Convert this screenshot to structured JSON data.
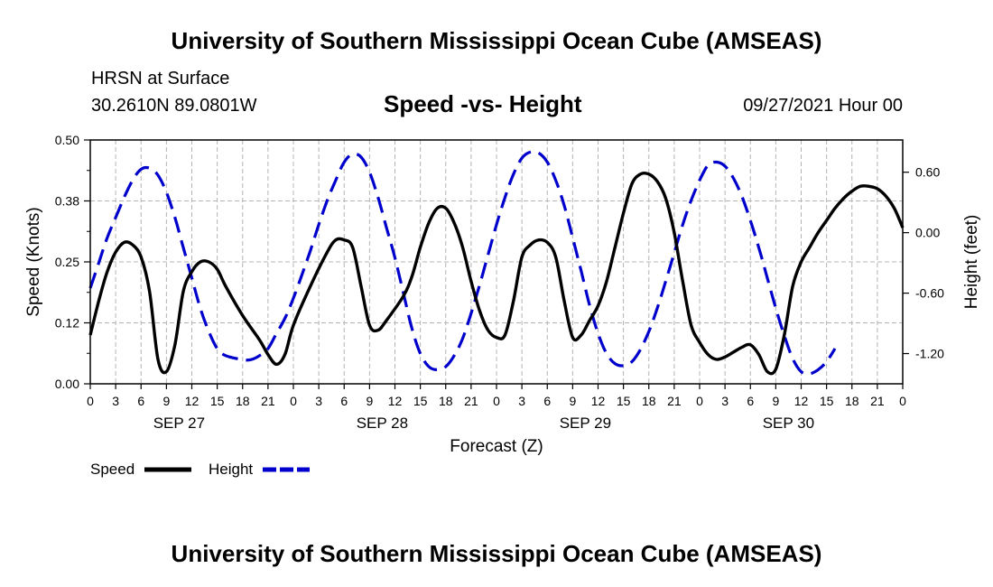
{
  "header": {
    "title": "University of Southern Mississippi Ocean Cube (AMSEAS)",
    "station": "HRSN at Surface",
    "coordinates": "30.2610N  89.0801W",
    "plot_title": "Speed -vs- Height",
    "datetime": "09/27/2021 Hour 00"
  },
  "footer": {
    "title": "University of Southern Mississippi Ocean Cube (AMSEAS)"
  },
  "chart_data": {
    "type": "line",
    "title": "Speed -vs- Height",
    "xlabel": "Forecast (Z)",
    "ylabel_left": "Speed (Knots)",
    "ylabel_right": "Height (feet)",
    "x_range_hours": [
      0,
      96
    ],
    "x_tick_step_hours": 3,
    "x_tick_labels": [
      "0",
      "3",
      "6",
      "9",
      "12",
      "15",
      "18",
      "21",
      "0",
      "3",
      "6",
      "9",
      "12",
      "15",
      "18",
      "21",
      "0",
      "3",
      "6",
      "9",
      "12",
      "15",
      "18",
      "21",
      "0",
      "3",
      "6",
      "9",
      "12",
      "15",
      "18",
      "21",
      "0"
    ],
    "day_labels": [
      {
        "label": "SEP 27",
        "hour": 9
      },
      {
        "label": "SEP 28",
        "hour": 33
      },
      {
        "label": "SEP 29",
        "hour": 57
      },
      {
        "label": "SEP 30",
        "hour": 81
      }
    ],
    "y_left": {
      "range": [
        0,
        0.5
      ],
      "ticks": [
        "0.00",
        "0.12",
        "0.25",
        "0.38",
        "0.50"
      ],
      "tick_values": [
        0,
        0.125,
        0.25,
        0.375,
        0.5
      ]
    },
    "y_right": {
      "range": [
        -1.5,
        0.92
      ],
      "ticks": [
        "0.60",
        "0.00",
        "-0.60",
        "-1.20"
      ],
      "tick_values": [
        0.6,
        0.0,
        -0.6,
        -1.2
      ]
    },
    "grid": true,
    "legend": [
      {
        "name": "Speed",
        "color": "#000000",
        "style": "solid"
      },
      {
        "name": "Height",
        "color": "#0000cc",
        "style": "dashed"
      }
    ],
    "series": [
      {
        "name": "Speed",
        "axis": "left",
        "color": "#000000",
        "points": [
          [
            0,
            0.1
          ],
          [
            1,
            0.17
          ],
          [
            2,
            0.23
          ],
          [
            3,
            0.27
          ],
          [
            4,
            0.29
          ],
          [
            5,
            0.285
          ],
          [
            6,
            0.26
          ],
          [
            7,
            0.19
          ],
          [
            8,
            0.05
          ],
          [
            9,
            0.025
          ],
          [
            10,
            0.08
          ],
          [
            11,
            0.19
          ],
          [
            12,
            0.23
          ],
          [
            13,
            0.25
          ],
          [
            14,
            0.25
          ],
          [
            15,
            0.235
          ],
          [
            16,
            0.2
          ],
          [
            18,
            0.14
          ],
          [
            20,
            0.09
          ],
          [
            21,
            0.06
          ],
          [
            22,
            0.04
          ],
          [
            23,
            0.06
          ],
          [
            24,
            0.12
          ],
          [
            26,
            0.2
          ],
          [
            28,
            0.27
          ],
          [
            29,
            0.295
          ],
          [
            30,
            0.295
          ],
          [
            31,
            0.28
          ],
          [
            32,
            0.2
          ],
          [
            33,
            0.12
          ],
          [
            34,
            0.11
          ],
          [
            35,
            0.13
          ],
          [
            37,
            0.18
          ],
          [
            38,
            0.22
          ],
          [
            39,
            0.28
          ],
          [
            40,
            0.33
          ],
          [
            41,
            0.36
          ],
          [
            42,
            0.36
          ],
          [
            43,
            0.33
          ],
          [
            44,
            0.28
          ],
          [
            45,
            0.21
          ],
          [
            46,
            0.15
          ],
          [
            47,
            0.11
          ],
          [
            48,
            0.095
          ],
          [
            49,
            0.1
          ],
          [
            50,
            0.17
          ],
          [
            51,
            0.26
          ],
          [
            52,
            0.285
          ],
          [
            53,
            0.295
          ],
          [
            54,
            0.29
          ],
          [
            55,
            0.26
          ],
          [
            56,
            0.17
          ],
          [
            57,
            0.095
          ],
          [
            58,
            0.1
          ],
          [
            59,
            0.13
          ],
          [
            60,
            0.16
          ],
          [
            61,
            0.21
          ],
          [
            62,
            0.28
          ],
          [
            63,
            0.35
          ],
          [
            64,
            0.41
          ],
          [
            65,
            0.43
          ],
          [
            66,
            0.43
          ],
          [
            67,
            0.415
          ],
          [
            68,
            0.38
          ],
          [
            69,
            0.31
          ],
          [
            70,
            0.21
          ],
          [
            71,
            0.12
          ],
          [
            72,
            0.085
          ],
          [
            73,
            0.06
          ],
          [
            74,
            0.05
          ],
          [
            75,
            0.055
          ],
          [
            76,
            0.065
          ],
          [
            77,
            0.075
          ],
          [
            78,
            0.08
          ],
          [
            79,
            0.06
          ],
          [
            80,
            0.025
          ],
          [
            81,
            0.03
          ],
          [
            82,
            0.1
          ],
          [
            83,
            0.2
          ],
          [
            84,
            0.25
          ],
          [
            85,
            0.28
          ],
          [
            86,
            0.31
          ],
          [
            87,
            0.335
          ],
          [
            88,
            0.36
          ],
          [
            89,
            0.38
          ],
          [
            90,
            0.395
          ],
          [
            91,
            0.405
          ],
          [
            92,
            0.405
          ],
          [
            93,
            0.4
          ],
          [
            94,
            0.385
          ],
          [
            95,
            0.36
          ],
          [
            96,
            0.32
          ]
        ]
      },
      {
        "name": "Height",
        "axis": "right",
        "color": "#0000cc",
        "points": [
          [
            0,
            -0.55
          ],
          [
            1,
            -0.3
          ],
          [
            2,
            -0.05
          ],
          [
            3,
            0.15
          ],
          [
            4,
            0.35
          ],
          [
            5,
            0.52
          ],
          [
            6,
            0.63
          ],
          [
            7,
            0.64
          ],
          [
            8,
            0.57
          ],
          [
            9,
            0.4
          ],
          [
            10,
            0.15
          ],
          [
            11,
            -0.15
          ],
          [
            12,
            -0.45
          ],
          [
            13,
            -0.75
          ],
          [
            14,
            -0.98
          ],
          [
            15,
            -1.15
          ],
          [
            16,
            -1.22
          ],
          [
            18,
            -1.26
          ],
          [
            19,
            -1.26
          ],
          [
            20,
            -1.22
          ],
          [
            21,
            -1.15
          ],
          [
            22,
            -1.0
          ],
          [
            23,
            -0.85
          ],
          [
            24,
            -0.65
          ],
          [
            25,
            -0.42
          ],
          [
            26,
            -0.18
          ],
          [
            27,
            0.08
          ],
          [
            28,
            0.32
          ],
          [
            29,
            0.52
          ],
          [
            30,
            0.7
          ],
          [
            31,
            0.78
          ],
          [
            32,
            0.75
          ],
          [
            33,
            0.6
          ],
          [
            34,
            0.35
          ],
          [
            35,
            0.05
          ],
          [
            36,
            -0.25
          ],
          [
            37,
            -0.6
          ],
          [
            38,
            -0.95
          ],
          [
            39,
            -1.2
          ],
          [
            40,
            -1.33
          ],
          [
            41,
            -1.36
          ],
          [
            42,
            -1.33
          ],
          [
            43,
            -1.22
          ],
          [
            44,
            -1.05
          ],
          [
            45,
            -0.8
          ],
          [
            46,
            -0.52
          ],
          [
            47,
            -0.22
          ],
          [
            48,
            0.08
          ],
          [
            49,
            0.35
          ],
          [
            50,
            0.58
          ],
          [
            51,
            0.74
          ],
          [
            52,
            0.8
          ],
          [
            53,
            0.79
          ],
          [
            54,
            0.7
          ],
          [
            55,
            0.52
          ],
          [
            56,
            0.27
          ],
          [
            57,
            -0.05
          ],
          [
            58,
            -0.38
          ],
          [
            59,
            -0.72
          ],
          [
            60,
            -1.0
          ],
          [
            61,
            -1.2
          ],
          [
            62,
            -1.3
          ],
          [
            63,
            -1.32
          ],
          [
            64,
            -1.28
          ],
          [
            65,
            -1.16
          ],
          [
            66,
            -0.98
          ],
          [
            67,
            -0.75
          ],
          [
            68,
            -0.48
          ],
          [
            69,
            -0.2
          ],
          [
            70,
            0.08
          ],
          [
            71,
            0.32
          ],
          [
            72,
            0.52
          ],
          [
            73,
            0.67
          ],
          [
            74,
            0.7
          ],
          [
            75,
            0.66
          ],
          [
            76,
            0.54
          ],
          [
            77,
            0.36
          ],
          [
            78,
            0.12
          ],
          [
            79,
            -0.15
          ],
          [
            80,
            -0.45
          ],
          [
            81,
            -0.75
          ],
          [
            82,
            -1.02
          ],
          [
            83,
            -1.25
          ],
          [
            84,
            -1.38
          ],
          [
            85,
            -1.4
          ],
          [
            86,
            -1.36
          ],
          [
            87,
            -1.28
          ],
          [
            88,
            -1.15
          ]
        ]
      }
    ]
  }
}
